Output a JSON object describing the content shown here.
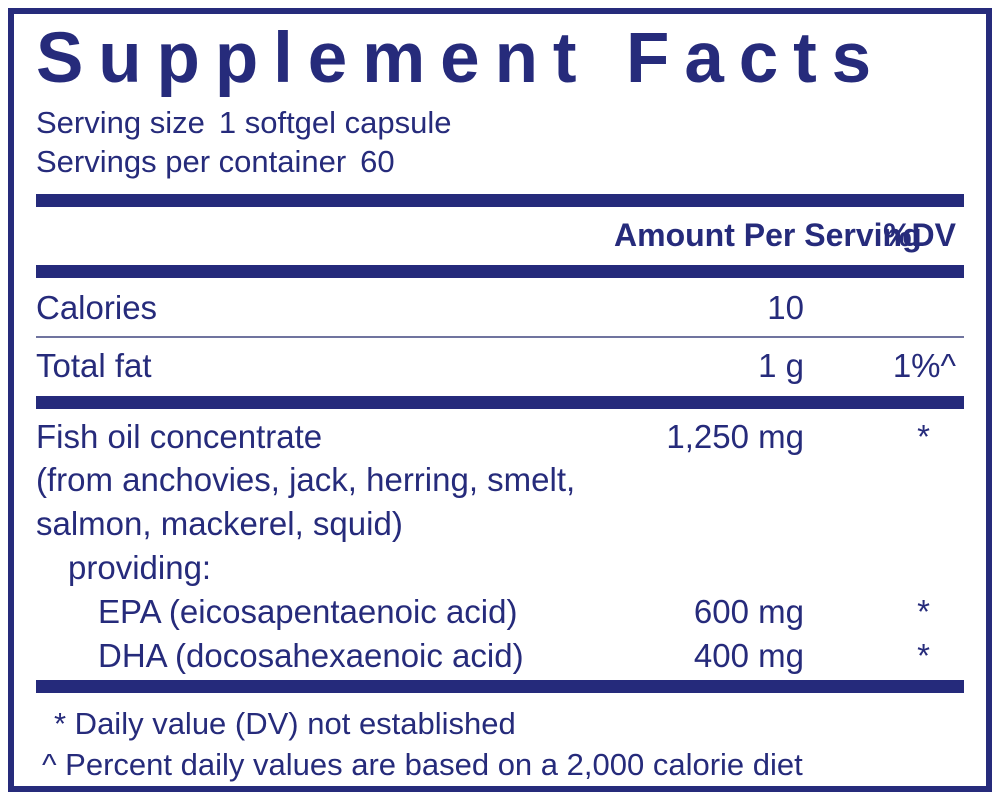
{
  "label": {
    "title": "Supplement Facts",
    "serving": {
      "size_label": "Serving size",
      "size_value": "1 softgel capsule",
      "per_container_label": "Servings per container",
      "per_container_value": "60"
    },
    "columns": {
      "amount_header": "Amount Per Serving",
      "dv_header": "%DV"
    },
    "rows": [
      {
        "name": "Calories",
        "amount": "10",
        "dv": ""
      },
      {
        "name": "Total fat",
        "amount": "1 g",
        "dv": "1%^"
      },
      {
        "name": "Fish oil concentrate",
        "amount": "1,250 mg",
        "dv": "*"
      }
    ],
    "source_lines": [
      "(from anchovies, jack, herring, smelt,",
      "salmon, mackerel, squid)"
    ],
    "providing_label": "providing:",
    "sub_rows": [
      {
        "name": "EPA (eicosapentaenoic acid)",
        "amount": "600 mg",
        "dv": "*"
      },
      {
        "name": "DHA (docosahexaenoic acid)",
        "amount": "400 mg",
        "dv": "*"
      }
    ],
    "footnotes": [
      "* Daily value (DV) not established",
      "^ Percent daily values are based on a 2,000 calorie diet"
    ],
    "colors": {
      "navy": "#262b7b",
      "background": "#ffffff"
    }
  }
}
